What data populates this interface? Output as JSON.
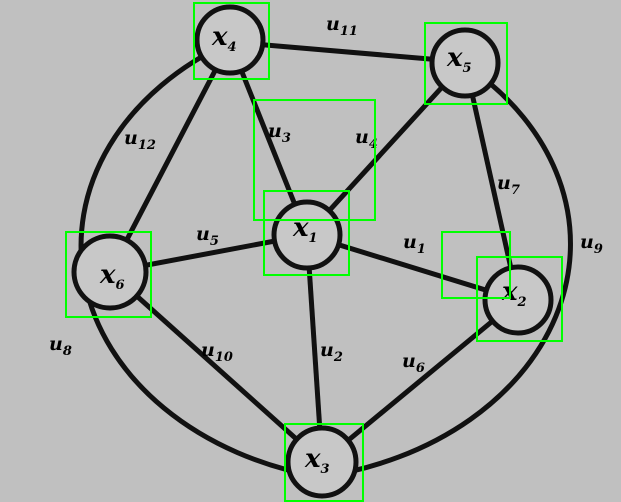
{
  "diagram": {
    "nodes": [
      {
        "id": "x1",
        "base": "x",
        "sub": "1"
      },
      {
        "id": "x2",
        "base": "x",
        "sub": "2"
      },
      {
        "id": "x3",
        "base": "x",
        "sub": "3"
      },
      {
        "id": "x4",
        "base": "x",
        "sub": "4"
      },
      {
        "id": "x5",
        "base": "x",
        "sub": "5"
      },
      {
        "id": "x6",
        "base": "x",
        "sub": "6"
      }
    ],
    "edges": [
      {
        "id": "u1",
        "base": "u",
        "sub": "1",
        "from": "x1",
        "to": "x2"
      },
      {
        "id": "u2",
        "base": "u",
        "sub": "2",
        "from": "x1",
        "to": "x3"
      },
      {
        "id": "u3",
        "base": "u",
        "sub": "3",
        "from": "x1",
        "to": "x4"
      },
      {
        "id": "u4",
        "base": "u",
        "sub": "4",
        "from": "x1",
        "to": "x5"
      },
      {
        "id": "u5",
        "base": "u",
        "sub": "5",
        "from": "x1",
        "to": "x6"
      },
      {
        "id": "u6",
        "base": "u",
        "sub": "6",
        "from": "x2",
        "to": "x3"
      },
      {
        "id": "u7",
        "base": "u",
        "sub": "7",
        "from": "x5",
        "to": "x2"
      },
      {
        "id": "u8",
        "base": "u",
        "sub": "8",
        "from": "x4",
        "to": "x3"
      },
      {
        "id": "u9",
        "base": "u",
        "sub": "9",
        "from": "x5",
        "to": "x3"
      },
      {
        "id": "u10",
        "base": "u",
        "sub": "10",
        "from": "x6",
        "to": "x3"
      },
      {
        "id": "u11",
        "base": "u",
        "sub": "11",
        "from": "x4",
        "to": "x5"
      },
      {
        "id": "u12",
        "base": "u",
        "sub": "12",
        "from": "x4",
        "to": "x6"
      }
    ],
    "colors": {
      "background": "#c0c0c0",
      "stroke": "#111111",
      "node_fill": "#c8c8c8",
      "highlight_box": "#00ff00"
    }
  }
}
